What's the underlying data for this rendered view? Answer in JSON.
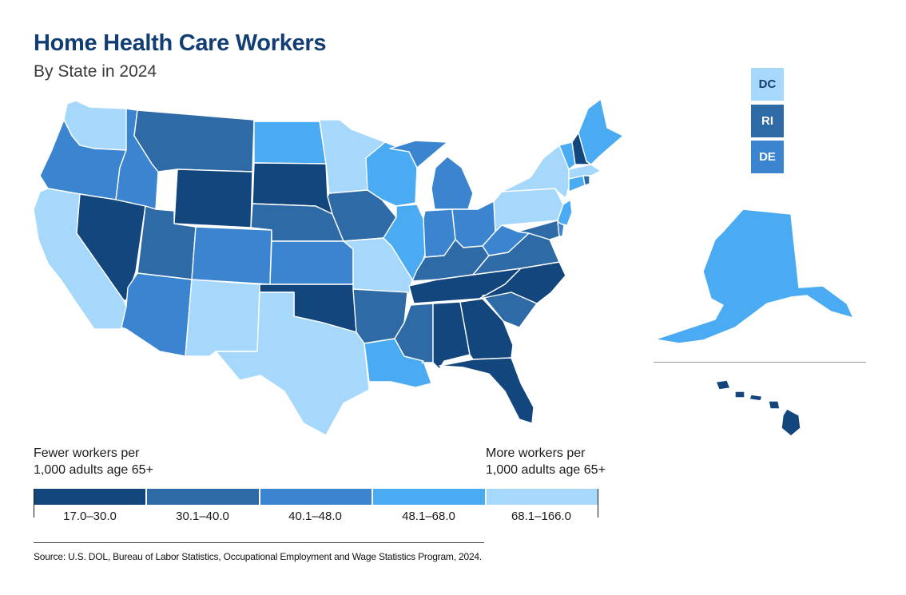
{
  "header": {
    "title": "Home Health Care Workers",
    "subtitle": "By State in 2024"
  },
  "colors": {
    "bin1": "#12467d",
    "bin2": "#2e6aa5",
    "bin3": "#3a84d0",
    "bin4": "#4aaaf2",
    "bin5": "#a6d8fb"
  },
  "small_states": [
    {
      "label": "DC",
      "bin": "bin5",
      "text_color": "#123e73"
    },
    {
      "label": "RI",
      "bin": "bin2",
      "text_color": "#ffffff"
    },
    {
      "label": "DE",
      "bin": "bin3",
      "text_color": "#ffffff"
    }
  ],
  "legend": {
    "left_caption": "Fewer workers per\n1,000 adults age 65+",
    "right_caption": "More workers per\n1,000 adults age 65+",
    "bins": [
      {
        "label": "17.0–30.0",
        "bin": "bin1"
      },
      {
        "label": "30.1–40.0",
        "bin": "bin2"
      },
      {
        "label": "40.1–48.0",
        "bin": "bin3"
      },
      {
        "label": "48.1–68.0",
        "bin": "bin4"
      },
      {
        "label": "68.1–166.0",
        "bin": "bin5"
      }
    ]
  },
  "state_bins": {
    "WA": "bin5",
    "OR": "bin3",
    "CA": "bin5",
    "NV": "bin1",
    "ID": "bin3",
    "MT": "bin2",
    "WY": "bin1",
    "UT": "bin2",
    "AZ": "bin3",
    "CO": "bin3",
    "NM": "bin5",
    "ND": "bin4",
    "SD": "bin1",
    "NE": "bin2",
    "KS": "bin3",
    "OK": "bin1",
    "TX": "bin5",
    "MN": "bin5",
    "IA": "bin2",
    "MO": "bin5",
    "AR": "bin2",
    "LA": "bin4",
    "WI": "bin4",
    "IL": "bin4",
    "MI": "bin3",
    "IN": "bin3",
    "OH": "bin3",
    "KY": "bin2",
    "TN": "bin1",
    "MS": "bin2",
    "AL": "bin1",
    "GA": "bin1",
    "FL": "bin1",
    "SC": "bin2",
    "NC": "bin1",
    "VA": "bin2",
    "WV": "bin3",
    "PA": "bin5",
    "NY": "bin5",
    "NJ": "bin4",
    "MD": "bin2",
    "DE": "bin3",
    "CT": "bin4",
    "RI": "bin2",
    "MA": "bin5",
    "VT": "bin4",
    "NH": "bin1",
    "ME": "bin4",
    "AK": "bin4",
    "HI": "bin1"
  },
  "source": "Source: U.S. DOL, Bureau of Labor Statistics, Occupational Employment and Wage Statistics Program, 2024."
}
